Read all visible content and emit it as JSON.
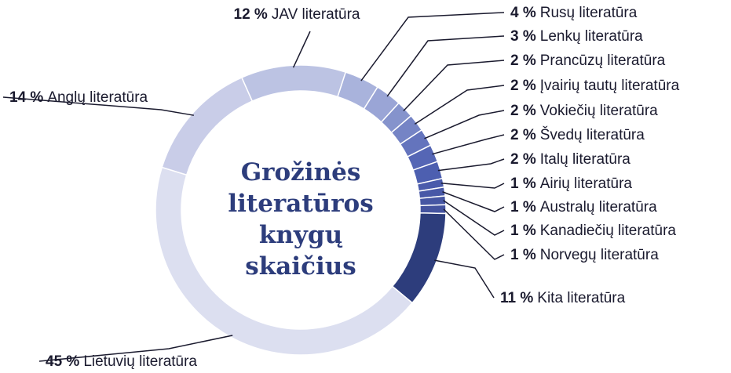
{
  "chart_data": {
    "type": "pie",
    "title": "Grožinės literatūros knygų skaičius",
    "categories": [
      "Rusų literatūra",
      "Lenkų literatūra",
      "Prancūzų literatūra",
      "Įvairių tautų literatūra",
      "Vokiečių literatūra",
      "Švedų literatūra",
      "Italų literatūra",
      "Airių literatūra",
      "Australų literatūra",
      "Kanadiečių literatūra",
      "Norvegų literatūra",
      "Kita literatūra",
      "Lietuvių literatūra",
      "Anglų literatūra",
      "JAV literatūra"
    ],
    "values": [
      4,
      3,
      2,
      2,
      2,
      2,
      2,
      1,
      1,
      1,
      1,
      11,
      45,
      14,
      12
    ],
    "value_labels": [
      "4 %",
      "3 %",
      "2 %",
      "2 %",
      "2 %",
      "2 %",
      "2 %",
      "1 %",
      "1 %",
      "1 %",
      "1 %",
      "11 %",
      "45 %",
      "14 %",
      "12 %"
    ],
    "colors": [
      "#a9b3dc",
      "#9aa5d6",
      "#8593cc",
      "#7584c5",
      "#6474bd",
      "#5566b5",
      "#4d5fb0",
      "#4a5bab",
      "#4858a7",
      "#4656a3",
      "#44539f",
      "#2d3d7c",
      "#dcdff0",
      "#c9cde8",
      "#bcc3e3"
    ],
    "donut": true
  }
}
